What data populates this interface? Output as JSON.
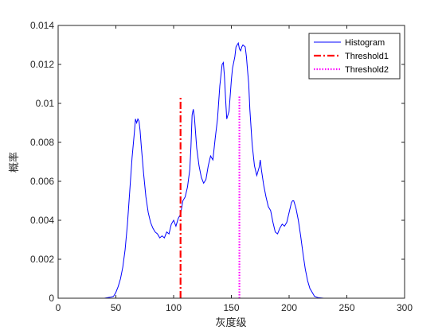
{
  "chart_data": {
    "type": "line",
    "title": "",
    "xlabel": "灰度级",
    "ylabel": "概率",
    "xlim": [
      0,
      300
    ],
    "ylim": [
      0,
      0.014
    ],
    "xticks": [
      "0",
      "50",
      "100",
      "150",
      "200",
      "250",
      "300"
    ],
    "yticks": [
      "0",
      "0.002",
      "0.004",
      "0.006",
      "0.008",
      "0.01",
      "0.012",
      "0.014"
    ],
    "grid": false,
    "legend_position": "top-right",
    "series": [
      {
        "name": "Histogram",
        "color": "#0000ff",
        "style": "solid",
        "x": [
          0,
          40,
          45,
          48,
          50,
          52,
          54,
          56,
          58,
          60,
          62,
          64,
          66,
          67,
          68,
          69,
          70,
          71,
          72,
          74,
          76,
          78,
          80,
          82,
          84,
          86,
          88,
          90,
          92,
          94,
          96,
          98,
          100,
          102,
          104,
          106,
          108,
          110,
          112,
          114,
          115,
          116,
          117,
          118,
          120,
          122,
          124,
          126,
          128,
          130,
          132,
          134,
          136,
          138,
          140,
          142,
          143,
          144,
          145,
          146,
          148,
          150,
          151,
          152,
          153,
          154,
          156,
          157,
          158,
          159,
          160,
          162,
          163,
          164,
          165,
          166,
          168,
          170,
          172,
          174,
          175,
          176,
          178,
          180,
          182,
          184,
          186,
          188,
          190,
          192,
          194,
          196,
          198,
          200,
          202,
          203,
          204,
          205,
          206,
          208,
          210,
          212,
          214,
          216,
          218,
          220,
          222,
          225,
          230,
          240,
          250,
          300
        ],
        "values": [
          0,
          0,
          5e-05,
          0.0001,
          0.0003,
          0.0006,
          0.001,
          0.0016,
          0.0025,
          0.0038,
          0.0055,
          0.0072,
          0.0085,
          0.0092,
          0.009,
          0.0092,
          0.0091,
          0.0086,
          0.0078,
          0.0064,
          0.0052,
          0.0044,
          0.0039,
          0.0036,
          0.0034,
          0.0033,
          0.0031,
          0.0032,
          0.0031,
          0.0034,
          0.0033,
          0.0038,
          0.004,
          0.0037,
          0.0041,
          0.0043,
          0.005,
          0.0052,
          0.0057,
          0.0066,
          0.0078,
          0.0094,
          0.0097,
          0.0093,
          0.0077,
          0.0068,
          0.0062,
          0.0059,
          0.0061,
          0.0068,
          0.0073,
          0.0071,
          0.0082,
          0.0092,
          0.0109,
          0.012,
          0.0121,
          0.0114,
          0.0102,
          0.0092,
          0.0096,
          0.0112,
          0.0118,
          0.0121,
          0.0124,
          0.0129,
          0.0131,
          0.0128,
          0.0127,
          0.0129,
          0.013,
          0.0129,
          0.0124,
          0.0117,
          0.011,
          0.0097,
          0.0079,
          0.0068,
          0.0063,
          0.0067,
          0.0071,
          0.0066,
          0.0058,
          0.0052,
          0.0047,
          0.0045,
          0.0039,
          0.0034,
          0.0033,
          0.0036,
          0.0038,
          0.0037,
          0.0039,
          0.0044,
          0.0049,
          0.005,
          0.005,
          0.0048,
          0.0046,
          0.004,
          0.0032,
          0.0023,
          0.0015,
          0.0009,
          0.0005,
          0.0003,
          0.0001,
          3e-05,
          0,
          0,
          0,
          0
        ]
      },
      {
        "name": "Threshold1",
        "color": "#ff0000",
        "style": "dash-dot",
        "x": [
          106,
          106
        ],
        "values": [
          0,
          0.0104
        ]
      },
      {
        "name": "Threshold2",
        "color": "#ff00ff",
        "style": "dotted",
        "x": [
          157,
          157
        ],
        "values": [
          0,
          0.0104
        ]
      }
    ]
  }
}
